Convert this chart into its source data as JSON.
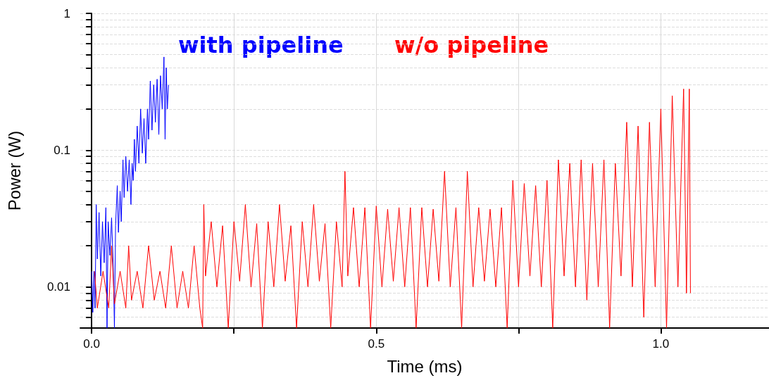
{
  "chart_data": {
    "type": "line",
    "xlabel": "Time (ms)",
    "ylabel": "Power (W)",
    "log": "y",
    "grid": true,
    "legend": false,
    "marker": "none",
    "line_style": "solid",
    "xlim": [
      -0.02,
      1.19
    ],
    "xticks": [
      {
        "value": 0,
        "label": "0.0"
      },
      {
        "value": 0.25,
        "label": null
      },
      {
        "value": 0.5,
        "label": "0.5"
      },
      {
        "value": 0.75,
        "label": null
      },
      {
        "value": 1,
        "label": "1.0"
      }
    ],
    "ylim": [
      0.005,
      1
    ],
    "yticks": [
      {
        "value": 0.005,
        "label": null
      },
      {
        "value": 0.006,
        "label": null
      },
      {
        "value": 0.007,
        "label": null
      },
      {
        "value": 0.008,
        "label": null
      },
      {
        "value": 0.009,
        "label": null
      },
      0.01,
      {
        "value": 0.02,
        "label": null
      },
      {
        "value": 0.03,
        "label": null
      },
      {
        "value": 0.04,
        "label": null
      },
      {
        "value": 0.05,
        "label": null
      },
      {
        "value": 0.06,
        "label": null
      },
      {
        "value": 0.07,
        "label": null
      },
      {
        "value": 0.08,
        "label": null
      },
      {
        "value": 0.09,
        "label": null
      },
      0.1,
      {
        "value": 0.2,
        "label": null
      },
      {
        "value": 0.3,
        "label": null
      },
      {
        "value": 0.4,
        "label": null
      },
      {
        "value": 0.5,
        "label": null
      },
      {
        "value": 0.6,
        "label": null
      },
      {
        "value": 0.7,
        "label": null
      },
      {
        "value": 0.8,
        "label": null
      },
      {
        "value": 0.9,
        "label": null
      },
      1
    ],
    "series": [
      {
        "name": "w/o pipeline",
        "color": "#ff0000",
        "x": [
          0.005,
          0.01,
          0.02,
          0.03,
          0.035,
          0.04,
          0.05,
          0.06,
          0.065,
          0.07,
          0.08,
          0.09,
          0.1,
          0.11,
          0.12,
          0.13,
          0.14,
          0.15,
          0.16,
          0.17,
          0.18,
          0.19,
          0.195,
          0.197,
          0.2,
          0.21,
          0.22,
          0.23,
          0.24,
          0.25,
          0.26,
          0.27,
          0.28,
          0.29,
          0.3,
          0.31,
          0.32,
          0.33,
          0.34,
          0.35,
          0.36,
          0.37,
          0.38,
          0.39,
          0.4,
          0.41,
          0.42,
          0.43,
          0.44,
          0.445,
          0.45,
          0.46,
          0.47,
          0.48,
          0.49,
          0.5,
          0.51,
          0.52,
          0.53,
          0.54,
          0.55,
          0.56,
          0.57,
          0.58,
          0.59,
          0.6,
          0.61,
          0.62,
          0.63,
          0.64,
          0.65,
          0.66,
          0.67,
          0.68,
          0.69,
          0.7,
          0.71,
          0.72,
          0.73,
          0.74,
          0.75,
          0.76,
          0.77,
          0.78,
          0.79,
          0.8,
          0.81,
          0.82,
          0.83,
          0.84,
          0.85,
          0.86,
          0.87,
          0.88,
          0.89,
          0.9,
          0.91,
          0.92,
          0.93,
          0.94,
          0.95,
          0.96,
          0.97,
          0.98,
          0.99,
          1.0,
          1.01,
          1.02,
          1.03,
          1.04,
          1.045,
          1.05,
          1.052
        ],
        "values": [
          0.013,
          0.007,
          0.013,
          0.007,
          0.02,
          0.0075,
          0.013,
          0.007,
          0.02,
          0.008,
          0.013,
          0.007,
          0.02,
          0.008,
          0.013,
          0.007,
          0.02,
          0.007,
          0.013,
          0.007,
          0.02,
          0.007,
          0.005,
          0.04,
          0.012,
          0.03,
          0.01,
          0.028,
          0.005,
          0.03,
          0.011,
          0.04,
          0.01,
          0.029,
          0.005,
          0.03,
          0.01,
          0.04,
          0.011,
          0.028,
          0.005,
          0.03,
          0.01,
          0.04,
          0.011,
          0.029,
          0.005,
          0.03,
          0.01,
          0.07,
          0.012,
          0.038,
          0.01,
          0.038,
          0.005,
          0.039,
          0.01,
          0.037,
          0.011,
          0.038,
          0.01,
          0.038,
          0.005,
          0.038,
          0.01,
          0.037,
          0.011,
          0.07,
          0.01,
          0.038,
          0.005,
          0.07,
          0.01,
          0.038,
          0.011,
          0.037,
          0.01,
          0.038,
          0.005,
          0.06,
          0.01,
          0.057,
          0.012,
          0.055,
          0.01,
          0.06,
          0.005,
          0.085,
          0.012,
          0.08,
          0.01,
          0.085,
          0.008,
          0.08,
          0.01,
          0.085,
          0.005,
          0.08,
          0.012,
          0.16,
          0.01,
          0.15,
          0.006,
          0.16,
          0.01,
          0.2,
          0.005,
          0.25,
          0.01,
          0.28,
          0.009,
          0.28,
          0.009
        ]
      },
      {
        "name": "with pipeline",
        "color": "#0000ff",
        "x": [
          0,
          0.002,
          0.004,
          0.006,
          0.008,
          0.01,
          0.013,
          0.016,
          0.019,
          0.022,
          0.025,
          0.027,
          0.029,
          0.032,
          0.035,
          0.038,
          0.04,
          0.042,
          0.045,
          0.047,
          0.05,
          0.052,
          0.055,
          0.057,
          0.06,
          0.063,
          0.066,
          0.069,
          0.071,
          0.073,
          0.075,
          0.077,
          0.08,
          0.083,
          0.086,
          0.089,
          0.092,
          0.095,
          0.098,
          0.1,
          0.103,
          0.106,
          0.109,
          0.112,
          0.115,
          0.118,
          0.121,
          0.124,
          0.127,
          0.129,
          0.131,
          0.133,
          0.135
        ],
        "values": [
          0.013,
          0.0065,
          0.013,
          0.007,
          0.04,
          0.016,
          0.035,
          0.012,
          0.03,
          0.015,
          0.038,
          0.005,
          0.03,
          0.017,
          0.032,
          0.014,
          0.005,
          0.028,
          0.055,
          0.025,
          0.05,
          0.03,
          0.085,
          0.045,
          0.09,
          0.05,
          0.085,
          0.04,
          0.08,
          0.06,
          0.12,
          0.07,
          0.15,
          0.08,
          0.2,
          0.095,
          0.17,
          0.08,
          0.2,
          0.12,
          0.32,
          0.14,
          0.3,
          0.16,
          0.33,
          0.13,
          0.35,
          0.2,
          0.48,
          0.12,
          0.4,
          0.2,
          0.3
        ]
      }
    ]
  }
}
